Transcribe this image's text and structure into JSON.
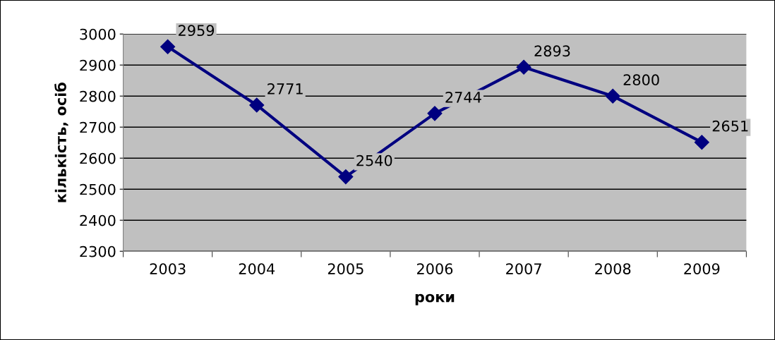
{
  "chart_data": {
    "type": "line",
    "xlabel": "роки",
    "ylabel": "кількість, осіб",
    "categories": [
      "2003",
      "2004",
      "2005",
      "2006",
      "2007",
      "2008",
      "2009"
    ],
    "series": [
      {
        "color": "#000080",
        "values": [
          2959,
          2771,
          2540,
          2744,
          2893,
          2800,
          2651
        ]
      }
    ],
    "ylim": [
      2300,
      3000
    ],
    "yticks": [
      2300,
      2400,
      2500,
      2600,
      2700,
      2800,
      2900,
      3000
    ],
    "grid": "y",
    "marker": "diamond",
    "line_style": "solid",
    "data_labels": true
  }
}
